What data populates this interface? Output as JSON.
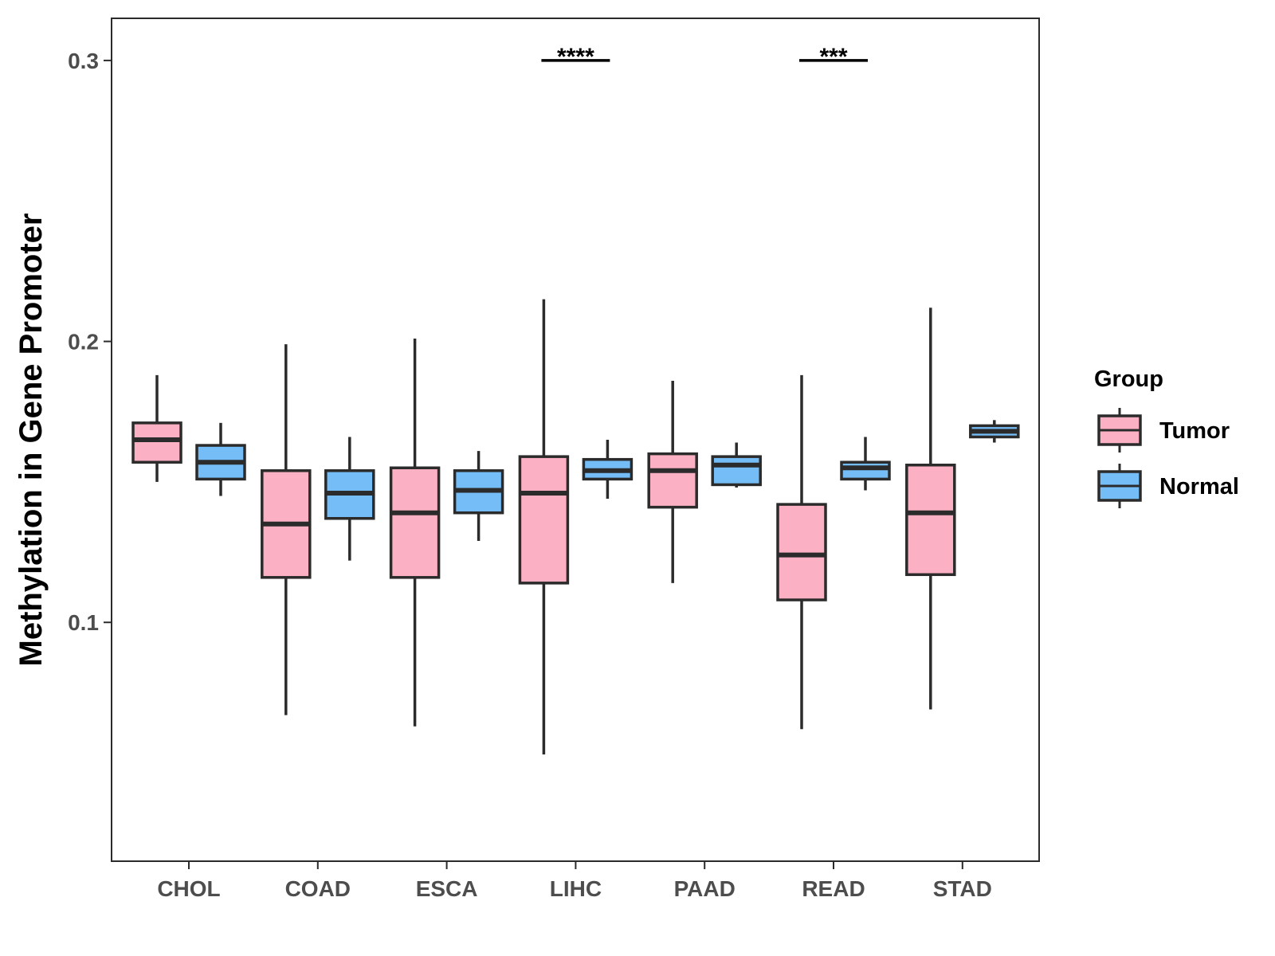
{
  "chart_data": {
    "type": "box",
    "title": "",
    "xlabel": "",
    "ylabel": "Methylation in Gene Promoter",
    "ylim": [
      0.015,
      0.315
    ],
    "yticks": [
      0.1,
      0.2,
      0.3
    ],
    "ytick_labels": [
      "0.1",
      "0.2",
      "0.3"
    ],
    "categories": [
      "CHOL",
      "COAD",
      "ESCA",
      "LIHC",
      "PAAD",
      "READ",
      "STAD"
    ],
    "legend": {
      "title": "Group",
      "position": "right"
    },
    "series": [
      {
        "name": "Tumor",
        "color": "#FBB1C3",
        "boxes": [
          {
            "category": "CHOL",
            "whisker_low": 0.15,
            "q1": 0.157,
            "median": 0.165,
            "q3": 0.171,
            "whisker_high": 0.188
          },
          {
            "category": "COAD",
            "whisker_low": 0.067,
            "q1": 0.116,
            "median": 0.135,
            "q3": 0.154,
            "whisker_high": 0.199
          },
          {
            "category": "ESCA",
            "whisker_low": 0.063,
            "q1": 0.116,
            "median": 0.139,
            "q3": 0.155,
            "whisker_high": 0.201
          },
          {
            "category": "LIHC",
            "whisker_low": 0.053,
            "q1": 0.114,
            "median": 0.146,
            "q3": 0.159,
            "whisker_high": 0.215
          },
          {
            "category": "PAAD",
            "whisker_low": 0.114,
            "q1": 0.141,
            "median": 0.154,
            "q3": 0.16,
            "whisker_high": 0.186
          },
          {
            "category": "READ",
            "whisker_low": 0.062,
            "q1": 0.108,
            "median": 0.124,
            "q3": 0.142,
            "whisker_high": 0.188
          },
          {
            "category": "STAD",
            "whisker_low": 0.069,
            "q1": 0.117,
            "median": 0.139,
            "q3": 0.156,
            "whisker_high": 0.212
          }
        ]
      },
      {
        "name": "Normal",
        "color": "#74BDF7",
        "boxes": [
          {
            "category": "CHOL",
            "whisker_low": 0.145,
            "q1": 0.151,
            "median": 0.157,
            "q3": 0.163,
            "whisker_high": 0.171
          },
          {
            "category": "COAD",
            "whisker_low": 0.122,
            "q1": 0.137,
            "median": 0.146,
            "q3": 0.154,
            "whisker_high": 0.166
          },
          {
            "category": "ESCA",
            "whisker_low": 0.129,
            "q1": 0.139,
            "median": 0.147,
            "q3": 0.154,
            "whisker_high": 0.161
          },
          {
            "category": "LIHC",
            "whisker_low": 0.144,
            "q1": 0.151,
            "median": 0.154,
            "q3": 0.158,
            "whisker_high": 0.165
          },
          {
            "category": "PAAD",
            "whisker_low": 0.148,
            "q1": 0.149,
            "median": 0.156,
            "q3": 0.159,
            "whisker_high": 0.164
          },
          {
            "category": "READ",
            "whisker_low": 0.147,
            "q1": 0.151,
            "median": 0.155,
            "q3": 0.157,
            "whisker_high": 0.166
          },
          {
            "category": "STAD",
            "whisker_low": 0.164,
            "q1": 0.166,
            "median": 0.168,
            "q3": 0.17,
            "whisker_high": 0.172
          }
        ]
      }
    ],
    "annotations": [
      {
        "category": "LIHC",
        "label": "****",
        "y": 0.3
      },
      {
        "category": "READ",
        "label": "***",
        "y": 0.3
      }
    ]
  }
}
